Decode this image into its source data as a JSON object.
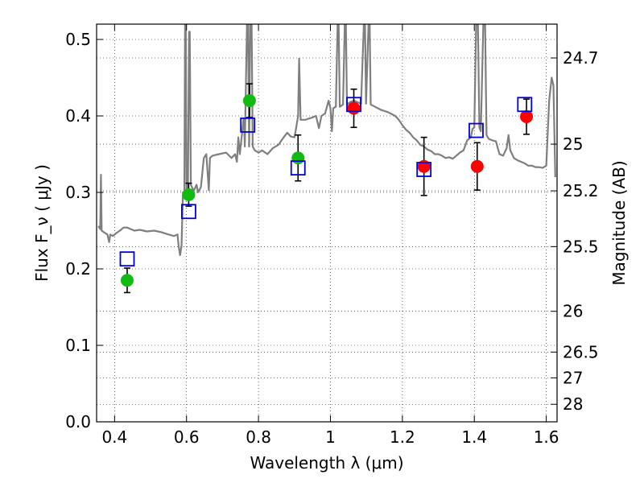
{
  "chart_data": {
    "type": "scatter",
    "xlabel": "Wavelength  λ (μm)",
    "ylabel": "Flux  F_ν  ( μJy )",
    "ylabel_right": "Magnitude (AB)",
    "xlim": [
      0.35,
      1.63
    ],
    "ylim": [
      0.0,
      0.52
    ],
    "grid": true,
    "x_ticks": [
      0.4,
      0.6,
      0.8,
      1.0,
      1.2,
      1.4,
      1.6
    ],
    "x_tick_labels": [
      "0.4",
      "0.6",
      "0.8",
      "1",
      "1.2",
      "1.4",
      "1.6"
    ],
    "y_ticks": [
      0.0,
      0.1,
      0.2,
      0.3,
      0.4,
      0.5
    ],
    "y_tick_labels": [
      "0.0",
      "0.1",
      "0.2",
      "0.3",
      "0.4",
      "0.5"
    ],
    "right_ticks": [
      {
        "label": "24.7",
        "flux": 0.4758
      },
      {
        "label": "25",
        "flux": 0.3631
      },
      {
        "label": "25.2",
        "flux": 0.302
      },
      {
        "label": "25.5",
        "flux": 0.2291
      },
      {
        "label": "26",
        "flux": 0.1445
      },
      {
        "label": "26.5",
        "flux": 0.0912
      },
      {
        "label": "27",
        "flux": 0.0575
      },
      {
        "label": "28",
        "flux": 0.0229
      }
    ],
    "colors": {
      "model": "#7f7f7f",
      "green_points": "#11bb11",
      "red_points": "#ff0000",
      "model_squares": "#0000dd",
      "errorbars": "#000000"
    },
    "series": [
      {
        "marker": "circle",
        "color": "green",
        "points": [
          {
            "x": 0.435,
            "y": 0.185,
            "err": 0.016
          },
          {
            "x": 0.606,
            "y": 0.297,
            "err": 0.015
          },
          {
            "x": 0.775,
            "y": 0.42,
            "err": 0.022
          },
          {
            "x": 0.91,
            "y": 0.345,
            "err": 0.03
          }
        ]
      },
      {
        "marker": "circle",
        "color": "red",
        "points": [
          {
            "x": 1.065,
            "y": 0.41,
            "err": 0.025
          },
          {
            "x": 1.26,
            "y": 0.334,
            "err": 0.038
          },
          {
            "x": 1.408,
            "y": 0.334,
            "err": 0.031
          },
          {
            "x": 1.545,
            "y": 0.399,
            "err": 0.023
          }
        ]
      },
      {
        "marker": "square",
        "color": "blue",
        "points": [
          {
            "x": 0.435,
            "y": 0.213
          },
          {
            "x": 0.606,
            "y": 0.275
          },
          {
            "x": 0.77,
            "y": 0.388
          },
          {
            "x": 0.91,
            "y": 0.332
          },
          {
            "x": 1.065,
            "y": 0.415
          },
          {
            "x": 1.26,
            "y": 0.33
          },
          {
            "x": 1.405,
            "y": 0.381
          },
          {
            "x": 1.54,
            "y": 0.415
          }
        ]
      }
    ],
    "model_spectrum": [
      [
        0.355,
        0.256
      ],
      [
        0.36,
        0.252
      ],
      [
        0.362,
        0.323
      ],
      [
        0.364,
        0.25
      ],
      [
        0.37,
        0.248
      ],
      [
        0.38,
        0.245
      ],
      [
        0.385,
        0.235
      ],
      [
        0.388,
        0.245
      ],
      [
        0.395,
        0.243
      ],
      [
        0.405,
        0.247
      ],
      [
        0.415,
        0.25
      ],
      [
        0.425,
        0.254
      ],
      [
        0.435,
        0.254
      ],
      [
        0.445,
        0.252
      ],
      [
        0.455,
        0.25
      ],
      [
        0.47,
        0.251
      ],
      [
        0.49,
        0.249
      ],
      [
        0.51,
        0.25
      ],
      [
        0.53,
        0.248
      ],
      [
        0.55,
        0.245
      ],
      [
        0.565,
        0.243
      ],
      [
        0.575,
        0.245
      ],
      [
        0.578,
        0.23
      ],
      [
        0.582,
        0.218
      ],
      [
        0.586,
        0.23
      ],
      [
        0.59,
        0.3
      ],
      [
        0.594,
        0.3
      ],
      [
        0.596,
        0.52
      ],
      [
        0.598,
        0.52
      ],
      [
        0.6,
        0.3
      ],
      [
        0.604,
        0.305
      ],
      [
        0.607,
        0.51
      ],
      [
        0.609,
        0.51
      ],
      [
        0.612,
        0.31
      ],
      [
        0.62,
        0.302
      ],
      [
        0.628,
        0.31
      ],
      [
        0.632,
        0.3
      ],
      [
        0.64,
        0.307
      ],
      [
        0.648,
        0.345
      ],
      [
        0.655,
        0.35
      ],
      [
        0.662,
        0.303
      ],
      [
        0.665,
        0.345
      ],
      [
        0.672,
        0.348
      ],
      [
        0.69,
        0.35
      ],
      [
        0.71,
        0.352
      ],
      [
        0.725,
        0.345
      ],
      [
        0.735,
        0.35
      ],
      [
        0.74,
        0.34
      ],
      [
        0.744,
        0.372
      ],
      [
        0.748,
        0.35
      ],
      [
        0.755,
        0.38
      ],
      [
        0.758,
        0.395
      ],
      [
        0.76,
        0.395
      ],
      [
        0.762,
        0.36
      ],
      [
        0.768,
        0.52
      ],
      [
        0.771,
        0.52
      ],
      [
        0.774,
        0.36
      ],
      [
        0.777,
        0.52
      ],
      [
        0.781,
        0.52
      ],
      [
        0.784,
        0.36
      ],
      [
        0.79,
        0.355
      ],
      [
        0.8,
        0.352
      ],
      [
        0.81,
        0.355
      ],
      [
        0.825,
        0.35
      ],
      [
        0.84,
        0.358
      ],
      [
        0.855,
        0.362
      ],
      [
        0.87,
        0.372
      ],
      [
        0.88,
        0.378
      ],
      [
        0.89,
        0.373
      ],
      [
        0.9,
        0.372
      ],
      [
        0.905,
        0.385
      ],
      [
        0.91,
        0.4
      ],
      [
        0.913,
        0.475
      ],
      [
        0.917,
        0.395
      ],
      [
        0.93,
        0.395
      ],
      [
        0.95,
        0.398
      ],
      [
        0.96,
        0.4
      ],
      [
        0.968,
        0.384
      ],
      [
        0.975,
        0.4
      ],
      [
        0.985,
        0.403
      ],
      [
        0.995,
        0.42
      ],
      [
        1.0,
        0.41
      ],
      [
        1.004,
        0.38
      ],
      [
        1.008,
        0.41
      ],
      [
        1.015,
        0.412
      ],
      [
        1.02,
        0.52
      ],
      [
        1.023,
        0.52
      ],
      [
        1.026,
        0.412
      ],
      [
        1.035,
        0.415
      ],
      [
        1.04,
        0.52
      ],
      [
        1.043,
        0.52
      ],
      [
        1.046,
        0.415
      ],
      [
        1.055,
        0.418
      ],
      [
        1.065,
        0.42
      ],
      [
        1.075,
        0.418
      ],
      [
        1.085,
        0.416
      ],
      [
        1.093,
        0.52
      ],
      [
        1.096,
        0.52
      ],
      [
        1.099,
        0.416
      ],
      [
        1.106,
        0.52
      ],
      [
        1.109,
        0.52
      ],
      [
        1.112,
        0.415
      ],
      [
        1.12,
        0.413
      ],
      [
        1.14,
        0.408
      ],
      [
        1.16,
        0.405
      ],
      [
        1.18,
        0.4
      ],
      [
        1.19,
        0.395
      ],
      [
        1.2,
        0.388
      ],
      [
        1.21,
        0.382
      ],
      [
        1.22,
        0.378
      ],
      [
        1.23,
        0.372
      ],
      [
        1.24,
        0.368
      ],
      [
        1.25,
        0.362
      ],
      [
        1.26,
        0.36
      ],
      [
        1.27,
        0.356
      ],
      [
        1.28,
        0.354
      ],
      [
        1.29,
        0.35
      ],
      [
        1.3,
        0.35
      ],
      [
        1.31,
        0.348
      ],
      [
        1.32,
        0.345
      ],
      [
        1.33,
        0.346
      ],
      [
        1.34,
        0.344
      ],
      [
        1.35,
        0.348
      ],
      [
        1.36,
        0.352
      ],
      [
        1.37,
        0.355
      ],
      [
        1.38,
        0.368
      ],
      [
        1.39,
        0.372
      ],
      [
        1.395,
        0.383
      ],
      [
        1.4,
        0.385
      ],
      [
        1.405,
        0.52
      ],
      [
        1.41,
        0.52
      ],
      [
        1.414,
        0.385
      ],
      [
        1.418,
        0.38
      ],
      [
        1.425,
        0.52
      ],
      [
        1.43,
        0.52
      ],
      [
        1.434,
        0.375
      ],
      [
        1.44,
        0.37
      ],
      [
        1.45,
        0.368
      ],
      [
        1.46,
        0.367
      ],
      [
        1.47,
        0.35
      ],
      [
        1.48,
        0.348
      ],
      [
        1.49,
        0.358
      ],
      [
        1.495,
        0.375
      ],
      [
        1.5,
        0.355
      ],
      [
        1.51,
        0.345
      ],
      [
        1.52,
        0.342
      ],
      [
        1.53,
        0.34
      ],
      [
        1.54,
        0.338
      ],
      [
        1.55,
        0.335
      ],
      [
        1.56,
        0.335
      ],
      [
        1.57,
        0.333
      ],
      [
        1.58,
        0.333
      ],
      [
        1.59,
        0.332
      ],
      [
        1.6,
        0.335
      ],
      [
        1.608,
        0.42
      ],
      [
        1.615,
        0.45
      ],
      [
        1.62,
        0.44
      ],
      [
        1.625,
        0.32
      ]
    ]
  }
}
